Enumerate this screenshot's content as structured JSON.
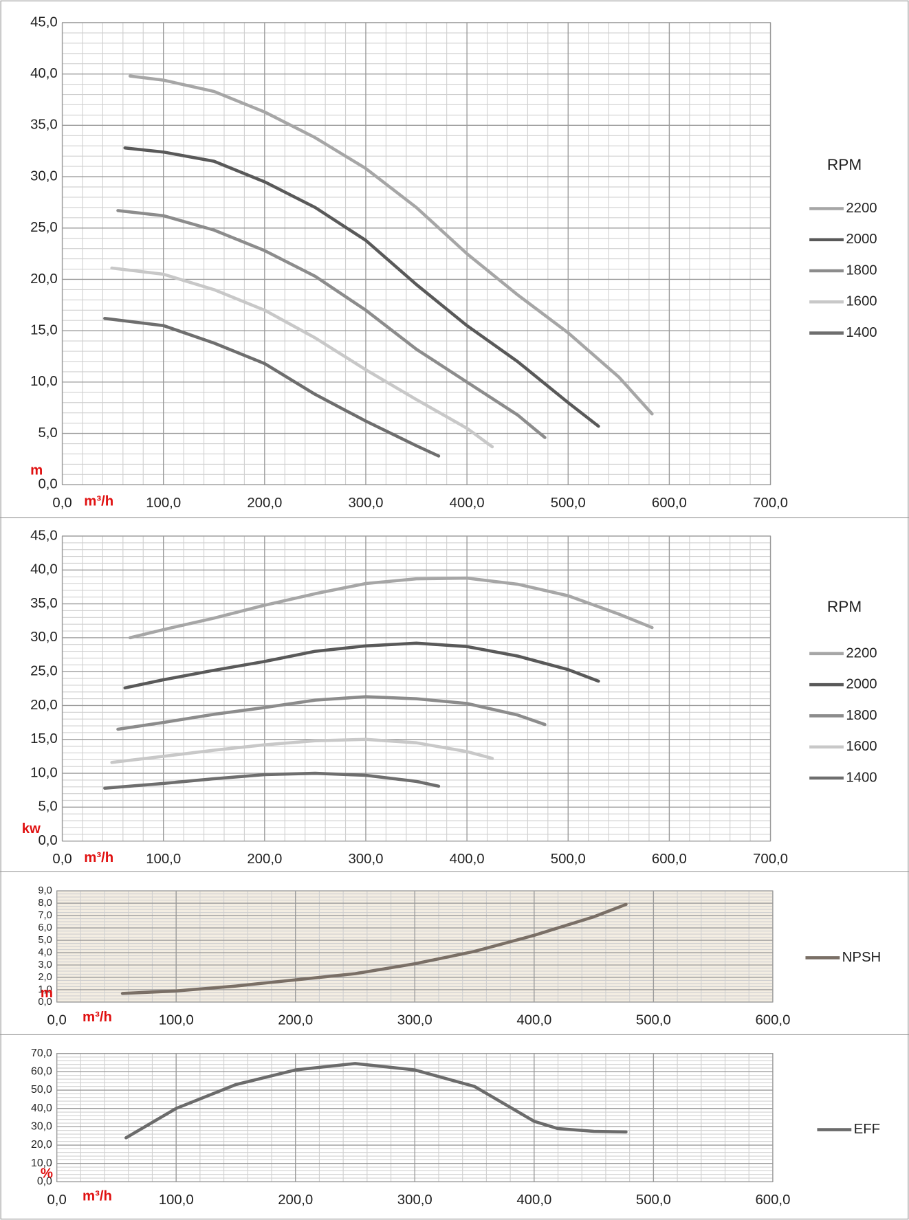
{
  "chart_data": [
    {
      "type": "line",
      "x_label": "m³/h",
      "y_label": "m",
      "legend_title": "RPM",
      "legend": "right",
      "grid": true,
      "xlim": [
        0,
        700
      ],
      "xticks": [
        {
          "value": 0,
          "label": "0,0"
        },
        {
          "value": 100,
          "label": "100,0"
        },
        {
          "value": 200,
          "label": "200,0"
        },
        {
          "value": 300,
          "label": "300,0"
        },
        {
          "value": 400,
          "label": "400,0"
        },
        {
          "value": 500,
          "label": "500,0"
        },
        {
          "value": 600,
          "label": "600,0"
        },
        {
          "value": 700,
          "label": "700,0"
        }
      ],
      "ylim": [
        0,
        45
      ],
      "yticks": [
        {
          "value": 0,
          "label": "0,0"
        },
        {
          "value": 5,
          "label": "5,0"
        },
        {
          "value": 10,
          "label": "10,0"
        },
        {
          "value": 15,
          "label": "15,0"
        },
        {
          "value": 20,
          "label": "20,0"
        },
        {
          "value": 25,
          "label": "25,0"
        },
        {
          "value": 30,
          "label": "30,0"
        },
        {
          "value": 35,
          "label": "35,0"
        },
        {
          "value": 40,
          "label": "40,0"
        },
        {
          "value": 45,
          "label": "45,0"
        }
      ],
      "series": [
        {
          "name": "2200",
          "color": "#a6a6a6",
          "x": [
            67,
            100,
            150,
            200,
            250,
            300,
            350,
            400,
            450,
            500,
            550,
            583
          ],
          "values": [
            39.8,
            39.4,
            38.3,
            36.3,
            33.8,
            30.8,
            27,
            22.5,
            18.5,
            14.8,
            10.5,
            6.9
          ]
        },
        {
          "name": "2000",
          "color": "#595959",
          "x": [
            62,
            100,
            150,
            200,
            250,
            300,
            350,
            400,
            450,
            500,
            530
          ],
          "values": [
            32.8,
            32.4,
            31.5,
            29.5,
            27,
            23.8,
            19.5,
            15.5,
            12,
            8,
            5.7
          ]
        },
        {
          "name": "1800",
          "color": "#8c8c8c",
          "x": [
            55,
            100,
            150,
            200,
            250,
            300,
            350,
            400,
            450,
            477
          ],
          "values": [
            26.7,
            26.2,
            24.8,
            22.8,
            20.3,
            17,
            13.2,
            10,
            6.8,
            4.6
          ]
        },
        {
          "name": "1600",
          "color": "#c8c8c8",
          "x": [
            49,
            100,
            150,
            200,
            250,
            300,
            350,
            400,
            425
          ],
          "values": [
            21.1,
            20.5,
            19,
            17,
            14.3,
            11.2,
            8.3,
            5.5,
            3.7
          ]
        },
        {
          "name": "1400",
          "color": "#6e6e6e",
          "x": [
            42,
            100,
            150,
            200,
            250,
            300,
            350,
            372
          ],
          "values": [
            16.2,
            15.5,
            13.8,
            11.8,
            8.8,
            6.2,
            3.8,
            2.8
          ]
        }
      ]
    },
    {
      "type": "line",
      "x_label": "m³/h",
      "y_label": "kw",
      "legend_title": "RPM",
      "legend": "right",
      "grid": true,
      "xlim": [
        0,
        700
      ],
      "xticks": [
        {
          "value": 0,
          "label": "0,0"
        },
        {
          "value": 100,
          "label": "100,0"
        },
        {
          "value": 200,
          "label": "200,0"
        },
        {
          "value": 300,
          "label": "300,0"
        },
        {
          "value": 400,
          "label": "400,0"
        },
        {
          "value": 500,
          "label": "500,0"
        },
        {
          "value": 600,
          "label": "600,0"
        },
        {
          "value": 700,
          "label": "700,0"
        }
      ],
      "ylim": [
        0,
        45
      ],
      "yticks": [
        {
          "value": 0,
          "label": "0,0"
        },
        {
          "value": 5,
          "label": "5,0"
        },
        {
          "value": 10,
          "label": "10,0"
        },
        {
          "value": 15,
          "label": "15,0"
        },
        {
          "value": 20,
          "label": "20,0"
        },
        {
          "value": 25,
          "label": "25,0"
        },
        {
          "value": 30,
          "label": "30,0"
        },
        {
          "value": 35,
          "label": "35,0"
        },
        {
          "value": 40,
          "label": "40,0"
        },
        {
          "value": 45,
          "label": "45,0"
        }
      ],
      "series": [
        {
          "name": "2200",
          "color": "#a6a6a6",
          "x": [
            67,
            100,
            150,
            200,
            250,
            300,
            350,
            400,
            450,
            500,
            550,
            583
          ],
          "values": [
            30,
            31.2,
            32.9,
            34.8,
            36.5,
            38,
            38.7,
            38.8,
            37.9,
            36.2,
            33.5,
            31.5
          ]
        },
        {
          "name": "2000",
          "color": "#595959",
          "x": [
            62,
            100,
            150,
            200,
            250,
            300,
            350,
            400,
            450,
            500,
            530
          ],
          "values": [
            22.6,
            23.8,
            25.2,
            26.5,
            28,
            28.8,
            29.2,
            28.7,
            27.3,
            25.3,
            23.6
          ]
        },
        {
          "name": "1800",
          "color": "#8c8c8c",
          "x": [
            55,
            100,
            150,
            200,
            250,
            300,
            350,
            400,
            450,
            477
          ],
          "values": [
            16.5,
            17.5,
            18.7,
            19.7,
            20.8,
            21.3,
            21,
            20.3,
            18.6,
            17.2
          ]
        },
        {
          "name": "1600",
          "color": "#c8c8c8",
          "x": [
            49,
            100,
            150,
            200,
            250,
            300,
            350,
            400,
            425
          ],
          "values": [
            11.6,
            12.5,
            13.4,
            14.2,
            14.8,
            15,
            14.5,
            13.2,
            12.2
          ]
        },
        {
          "name": "1400",
          "color": "#6e6e6e",
          "x": [
            42,
            100,
            150,
            200,
            250,
            300,
            350,
            372
          ],
          "values": [
            7.8,
            8.5,
            9.2,
            9.8,
            10,
            9.7,
            8.8,
            8.1
          ]
        }
      ]
    },
    {
      "type": "line",
      "x_label": "m³/h",
      "y_label": "m",
      "legend": "right",
      "grid": true,
      "xlim": [
        0,
        600
      ],
      "xticks": [
        {
          "value": 0,
          "label": "0,0"
        },
        {
          "value": 100,
          "label": "100,0"
        },
        {
          "value": 200,
          "label": "200,0"
        },
        {
          "value": 300,
          "label": "300,0"
        },
        {
          "value": 400,
          "label": "400,0"
        },
        {
          "value": 500,
          "label": "500,0"
        },
        {
          "value": 600,
          "label": "600,0"
        }
      ],
      "ylim": [
        0,
        9
      ],
      "yticks": [
        {
          "value": 0,
          "label": "0,0"
        },
        {
          "value": 1,
          "label": "1,0"
        },
        {
          "value": 2,
          "label": "2,0"
        },
        {
          "value": 3,
          "label": "3,0"
        },
        {
          "value": 4,
          "label": "4,0"
        },
        {
          "value": 5,
          "label": "5,0"
        },
        {
          "value": 6,
          "label": "6,0"
        },
        {
          "value": 7,
          "label": "7,0"
        },
        {
          "value": 8,
          "label": "8,0"
        },
        {
          "value": 9,
          "label": "9,0"
        }
      ],
      "series": [
        {
          "name": "NPSH",
          "color": "#7a6f66",
          "x": [
            55,
            100,
            150,
            200,
            250,
            300,
            350,
            400,
            450,
            477
          ],
          "values": [
            0.7,
            0.9,
            1.3,
            1.8,
            2.3,
            3.1,
            4.1,
            5.4,
            6.9,
            7.9
          ]
        }
      ]
    },
    {
      "type": "line",
      "x_label": "m³/h",
      "y_label": "%",
      "legend": "right",
      "grid": true,
      "xlim": [
        0,
        600
      ],
      "xticks": [
        {
          "value": 0,
          "label": "0,0"
        },
        {
          "value": 100,
          "label": "100,0"
        },
        {
          "value": 200,
          "label": "200,0"
        },
        {
          "value": 300,
          "label": "300,0"
        },
        {
          "value": 400,
          "label": "400,0"
        },
        {
          "value": 500,
          "label": "500,0"
        },
        {
          "value": 600,
          "label": "600,0"
        }
      ],
      "ylim": [
        0,
        70
      ],
      "yticks": [
        {
          "value": 0,
          "label": "0,0"
        },
        {
          "value": 10,
          "label": "10,0"
        },
        {
          "value": 20,
          "label": "20,0"
        },
        {
          "value": 30,
          "label": "30,0"
        },
        {
          "value": 40,
          "label": "40,0"
        },
        {
          "value": 50,
          "label": "50,0"
        },
        {
          "value": 60,
          "label": "60,0"
        },
        {
          "value": 70,
          "label": "70,0"
        }
      ],
      "series": [
        {
          "name": "EFF",
          "color": "#6b6b6b",
          "x": [
            58,
            100,
            150,
            200,
            250,
            300,
            350,
            400,
            420,
            450,
            477
          ],
          "values": [
            24,
            40,
            53,
            61,
            64.5,
            61,
            52,
            33,
            29,
            27.5,
            27.2
          ]
        }
      ]
    }
  ]
}
